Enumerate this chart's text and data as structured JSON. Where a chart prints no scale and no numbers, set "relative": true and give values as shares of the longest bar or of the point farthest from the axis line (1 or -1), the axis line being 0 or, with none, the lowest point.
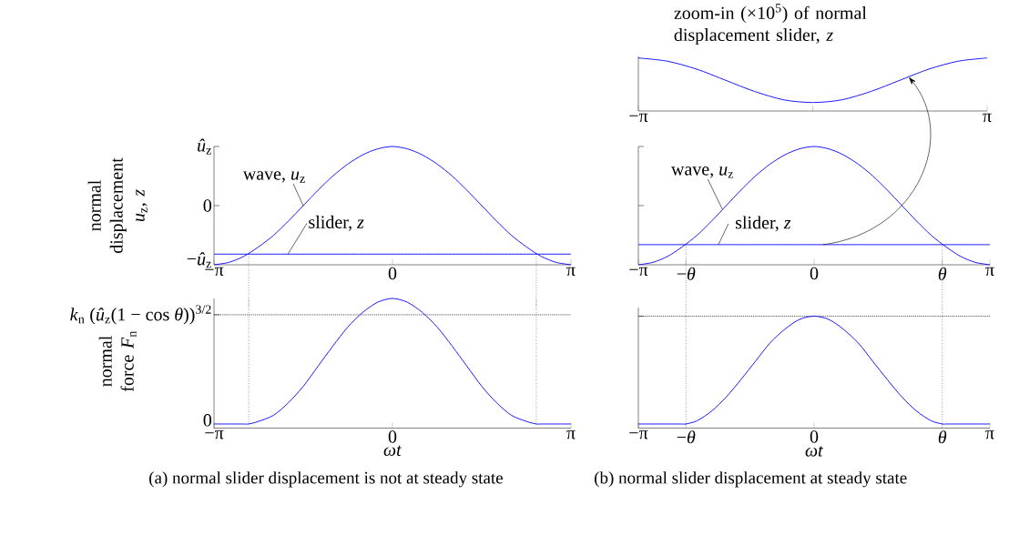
{
  "chart_data": [
    {
      "type": "line",
      "relative": true,
      "title": "zoom-in (×10$^{5}$) of normal displacement slider, *z*",
      "x": [
        -3.14,
        -2.62,
        -2.09,
        -1.57,
        -1.05,
        -0.52,
        0,
        0.52,
        1.05,
        1.57,
        2.09,
        2.62,
        3.14
      ],
      "xlim": [
        -3.14,
        3.14
      ],
      "xticks": [
        {
          "value": -3.14,
          "label": "−π"
        },
        {
          "value": 0,
          "label": null
        },
        {
          "value": 3.14,
          "label": "π"
        }
      ],
      "series": [
        {
          "color": "#0000ff",
          "values": [
            1,
            0.94,
            0.79,
            0.58,
            0.37,
            0.21,
            0.16,
            0.21,
            0.37,
            0.58,
            0.79,
            0.94,
            1
          ]
        }
      ]
    },
    {
      "type": "line",
      "relative": true,
      "ylabel": "normal displacement *u*$_{z}$, *z*",
      "x": [
        -3.14,
        -2.88,
        -2.62,
        -2.36,
        -2.09,
        -1.83,
        -1.57,
        -1.31,
        -1.05,
        -0.79,
        -0.52,
        -0.26,
        0,
        0.26,
        0.52,
        0.79,
        1.05,
        1.31,
        1.57,
        1.83,
        2.09,
        2.36,
        2.62,
        2.88,
        3.14
      ],
      "xlim": [
        -3.14,
        3.14
      ],
      "xticks": [
        {
          "value": -3.14,
          "label": "−π"
        },
        0,
        {
          "value": 3.14,
          "label": "π"
        }
      ],
      "series": [
        {
          "color": "#0000ff",
          "values": [
            0,
            0.02,
            0.07,
            0.15,
            0.25,
            0.37,
            0.5,
            0.63,
            0.75,
            0.85,
            0.93,
            0.98,
            1,
            0.98,
            0.93,
            0.85,
            0.75,
            0.63,
            0.5,
            0.37,
            0.25,
            0.15,
            0.07,
            0.02,
            0
          ]
        },
        {
          "color": "#0000ff",
          "values": [
            0.09,
            0.09,
            0.09,
            0.09,
            0.09,
            0.09,
            0.09,
            0.09,
            0.09,
            0.09,
            0.09,
            0.09,
            0.09,
            0.09,
            0.09,
            0.09,
            0.09,
            0.09,
            0.09,
            0.09,
            0.09,
            0.09,
            0.09,
            0.09,
            0.09
          ]
        }
      ],
      "annotations": [
        {
          "text": "wave, *u*$_{z}$",
          "x": -1.57,
          "y": 0.5
        },
        {
          "text": "slider, *z*",
          "x": -1.84,
          "y": 0.09
        },
        "*û*$_{z}$",
        "0",
        "−*û*$_{z}$"
      ],
      "ref_lines": [
        {
          "axis": "x",
          "value": -2.53,
          "line_style": "dotted"
        },
        {
          "axis": "x",
          "value": 2.53,
          "line_style": "dotted"
        }
      ]
    },
    {
      "type": "line",
      "relative": true,
      "x": [
        -3.14,
        -2.88,
        -2.62,
        -2.36,
        -2.09,
        -1.83,
        -1.57,
        -1.31,
        -1.05,
        -0.79,
        -0.52,
        -0.26,
        0,
        0.26,
        0.52,
        0.79,
        1.05,
        1.31,
        1.57,
        1.83,
        2.09,
        2.36,
        2.62,
        2.88,
        3.14
      ],
      "xlim": [
        -3.14,
        3.14
      ],
      "xticks": [
        {
          "value": -3.14,
          "label": "−π"
        },
        {
          "value": -2.29,
          "label": "−*θ*"
        },
        0,
        {
          "value": 2.29,
          "label": "*θ*"
        },
        {
          "value": 3.14,
          "label": "π"
        }
      ],
      "series": [
        {
          "color": "#0000ff",
          "values": [
            0,
            0.02,
            0.07,
            0.15,
            0.25,
            0.37,
            0.5,
            0.63,
            0.75,
            0.85,
            0.93,
            0.98,
            1,
            0.98,
            0.93,
            0.85,
            0.75,
            0.63,
            0.5,
            0.37,
            0.25,
            0.15,
            0.07,
            0.02,
            0
          ]
        },
        {
          "color": "#0000ff",
          "values": [
            0.17,
            0.17,
            0.17,
            0.17,
            0.17,
            0.17,
            0.17,
            0.17,
            0.17,
            0.17,
            0.17,
            0.17,
            0.17,
            0.17,
            0.17,
            0.17,
            0.17,
            0.17,
            0.17,
            0.17,
            0.17,
            0.17,
            0.17,
            0.17,
            0.17
          ]
        }
      ],
      "annotations": [
        {
          "text": "wave, *u*$_{z}$",
          "x": -1.64,
          "y": 0.47
        },
        {
          "text": "slider, *z*",
          "x": -1.71,
          "y": 0.17
        }
      ],
      "ref_lines": [
        {
          "axis": "x",
          "value": -2.29,
          "line_style": "dotted"
        },
        {
          "axis": "x",
          "value": 2.29,
          "line_style": "dotted"
        }
      ]
    },
    {
      "type": "line",
      "relative": true,
      "ylabel": "normal force *F*$_{n}$",
      "xlabel": "*ωt*",
      "x": [
        -3.14,
        -2.88,
        -2.62,
        -2.53,
        -2.36,
        -2.09,
        -1.83,
        -1.57,
        -1.31,
        -1.05,
        -0.79,
        -0.52,
        -0.26,
        0,
        0.26,
        0.52,
        0.79,
        1.05,
        1.31,
        1.57,
        1.83,
        2.09,
        2.36,
        2.53,
        2.62,
        2.88,
        3.14
      ],
      "xlim": [
        -3.14,
        3.14
      ],
      "xticks": [
        {
          "value": -3.14,
          "label": "−π"
        },
        0,
        {
          "value": 3.14,
          "label": "π"
        }
      ],
      "series": [
        {
          "color": "#0000ff",
          "values": [
            0,
            0,
            0,
            0,
            0.02,
            0.07,
            0.17,
            0.3,
            0.46,
            0.62,
            0.77,
            0.89,
            0.97,
            1,
            0.97,
            0.89,
            0.77,
            0.62,
            0.46,
            0.3,
            0.17,
            0.07,
            0.02,
            0,
            0,
            0,
            0
          ]
        }
      ],
      "annotations": [
        "0",
        "(a) normal slider displacement is not at steady state"
      ],
      "ref_lines": [
        {
          "axis": "x",
          "value": -2.53,
          "line_style": "dotted"
        },
        {
          "axis": "x",
          "value": 2.53,
          "line_style": "dotted"
        },
        {
          "axis": "y",
          "value": 0.87,
          "line_style": "dotted",
          "label": "*k*$_{n}$ (*û*$_{z}$(1 − cos *θ*))$^{3/2}$"
        }
      ]
    },
    {
      "type": "line",
      "relative": true,
      "xlabel": "*ωt*",
      "x": [
        -3.14,
        -2.88,
        -2.62,
        -2.36,
        -2.29,
        -2.09,
        -1.83,
        -1.57,
        -1.31,
        -1.05,
        -0.79,
        -0.52,
        -0.26,
        0,
        0.26,
        0.52,
        0.79,
        1.05,
        1.31,
        1.57,
        1.83,
        2.09,
        2.29,
        2.36,
        2.62,
        2.88,
        3.14
      ],
      "xlim": [
        -3.14,
        3.14
      ],
      "xticks": [
        {
          "value": -3.14,
          "label": "−π"
        },
        {
          "value": -2.29,
          "label": "−*θ*"
        },
        0,
        {
          "value": 2.29,
          "label": "*θ*"
        },
        {
          "value": 3.14,
          "label": "π"
        }
      ],
      "series": [
        {
          "color": "#0000ff",
          "values": [
            0,
            0,
            0,
            0,
            0,
            0.03,
            0.12,
            0.25,
            0.41,
            0.58,
            0.75,
            0.88,
            0.97,
            1,
            0.97,
            0.88,
            0.75,
            0.58,
            0.41,
            0.25,
            0.12,
            0.03,
            0,
            0,
            0,
            0,
            0
          ]
        }
      ],
      "annotations": [
        "(b) normal slider displacement at steady state"
      ],
      "ref_lines": [
        {
          "axis": "x",
          "value": -2.29,
          "line_style": "dotted"
        },
        {
          "axis": "x",
          "value": 2.29,
          "line_style": "dotted"
        },
        {
          "axis": "y",
          "value": 1,
          "line_style": "dotted"
        }
      ]
    }
  ]
}
